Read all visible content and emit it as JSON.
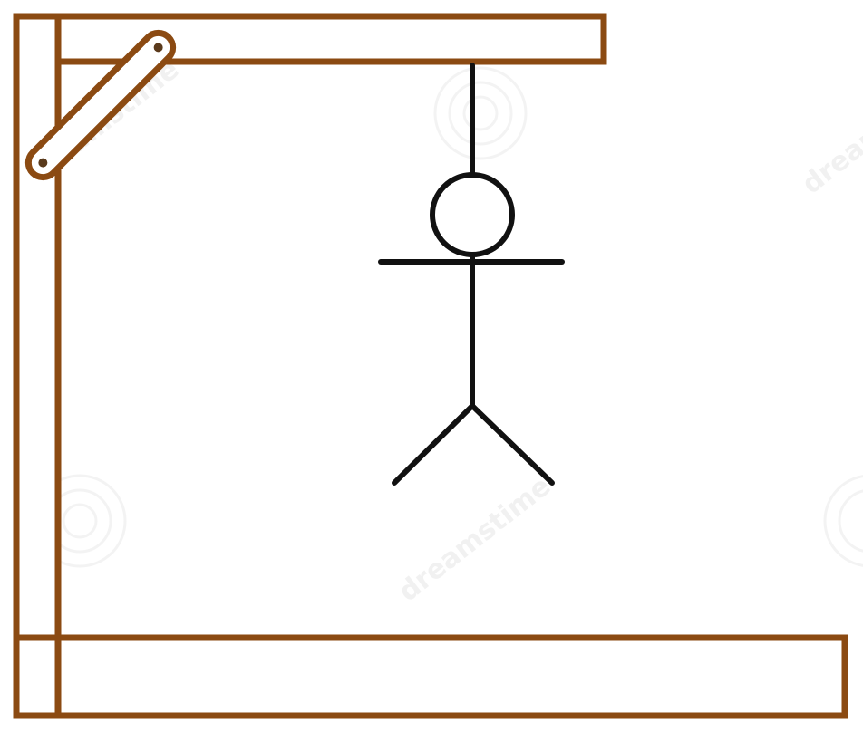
{
  "scene": {
    "subject": "hangman drawing",
    "colors": {
      "background": "#ffffff",
      "wood_outline": "#8b4a12",
      "figure": "#111111"
    },
    "gallows_parts": [
      "vertical-post",
      "top-beam",
      "diagonal-brace",
      "base-beam"
    ],
    "figure_parts": [
      "rope",
      "head",
      "arms",
      "body",
      "left-leg",
      "right-leg"
    ]
  },
  "watermark": {
    "text": "dreamstime"
  }
}
